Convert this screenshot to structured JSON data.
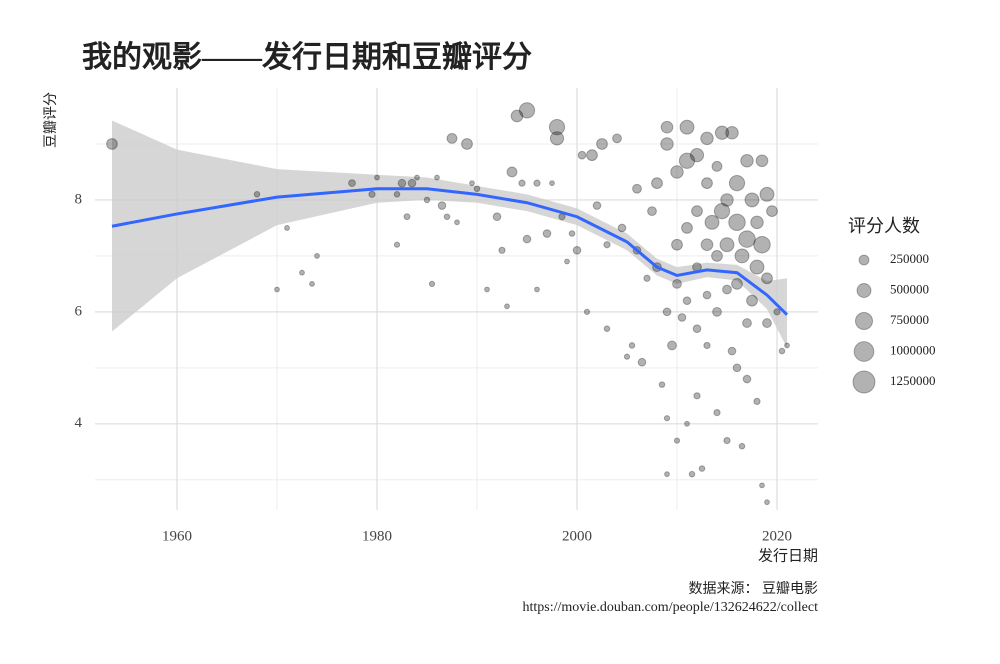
{
  "chart_data": {
    "type": "scatter",
    "title": "我的观影——发行日期和豆瓣评分",
    "x_label": "发行日期",
    "y_label": "豆瓣评分",
    "caption": [
      "数据来源： 豆瓣电影",
      "https://movie.douban.com/people/132624622/collect"
    ],
    "xlim": [
      1951.8,
      2024.1
    ],
    "ylim": [
      2.46,
      10
    ],
    "xticks": [
      1960,
      1980,
      2000,
      2020
    ],
    "yticks": [
      4,
      6,
      8
    ],
    "x_minor_grid": [
      1970,
      1990,
      2010
    ],
    "y_minor_grid": [
      3,
      5,
      7,
      9
    ],
    "grid": true,
    "series": [
      {
        "color": "#000000",
        "opacity": 0.3,
        "x": [
          1953.5,
          1968,
          1970,
          1971,
          1972.5,
          1973.5,
          1974,
          1977.5,
          1979.5,
          1980,
          1982,
          1982,
          1982.5,
          1983,
          1983.5,
          1984,
          1985,
          1985.5,
          1986,
          1986.5,
          1987,
          1987.5,
          1988,
          1989,
          1989.5,
          1990,
          1991,
          1992,
          1992.5,
          1993,
          1993.5,
          1994,
          1994.5,
          1995,
          1995,
          1996,
          1996,
          1997,
          1997.5,
          1998,
          1998,
          1998.5,
          1999,
          1999.5,
          2000,
          2000.5,
          2001,
          2001.5,
          2002,
          2002.5,
          2003,
          2003,
          2004,
          2004.5,
          2005,
          2005.5,
          2006,
          2006,
          2006.5,
          2007,
          2007.5,
          2008,
          2008,
          2008.5,
          2009,
          2009,
          2009,
          2009,
          2009,
          2009.5,
          2010,
          2010,
          2010,
          2010,
          2010.5,
          2011,
          2011,
          2011,
          2011,
          2011,
          2011.5,
          2012,
          2012,
          2012,
          2012,
          2012,
          2012.5,
          2013,
          2013,
          2013,
          2013,
          2013,
          2013.5,
          2014,
          2014,
          2014,
          2014,
          2014.5,
          2014.5,
          2015,
          2015,
          2015,
          2015,
          2015.5,
          2015.5,
          2016,
          2016,
          2016,
          2016,
          2016.5,
          2016.5,
          2017,
          2017,
          2017,
          2017,
          2017.5,
          2017.5,
          2018,
          2018,
          2018,
          2018.5,
          2018.5,
          2018.5,
          2019,
          2019,
          2019,
          2019,
          2019.5,
          2020,
          2020.5,
          2021
        ],
        "values": [
          9.0,
          8.1,
          6.4,
          7.5,
          6.7,
          6.5,
          7.0,
          8.3,
          8.1,
          8.4,
          8.1,
          7.2,
          8.3,
          7.7,
          8.3,
          8.4,
          8.0,
          6.5,
          8.4,
          7.9,
          7.7,
          9.1,
          7.6,
          9.0,
          8.3,
          8.2,
          6.4,
          7.7,
          7.1,
          6.1,
          8.5,
          9.5,
          8.3,
          9.6,
          7.3,
          8.3,
          6.4,
          7.4,
          8.3,
          9.3,
          9.1,
          7.7,
          6.9,
          7.4,
          7.1,
          8.8,
          6.0,
          8.8,
          7.9,
          9.0,
          7.2,
          5.7,
          9.1,
          7.5,
          5.2,
          5.4,
          8.2,
          7.1,
          5.1,
          6.6,
          7.8,
          8.3,
          6.8,
          4.7,
          9.3,
          9.0,
          6.0,
          4.1,
          3.1,
          5.4,
          8.5,
          7.2,
          6.5,
          3.7,
          5.9,
          9.3,
          8.7,
          7.5,
          6.2,
          4.0,
          3.1,
          8.8,
          7.8,
          6.8,
          5.7,
          4.5,
          3.2,
          9.1,
          8.3,
          7.2,
          6.3,
          5.4,
          7.6,
          8.6,
          7.0,
          6.0,
          4.2,
          9.2,
          7.8,
          8.0,
          7.2,
          6.4,
          3.7,
          9.2,
          5.3,
          8.3,
          7.6,
          6.5,
          5.0,
          7.0,
          3.6,
          8.7,
          7.3,
          5.8,
          4.8,
          8.0,
          6.2,
          7.6,
          6.8,
          4.4,
          8.7,
          7.2,
          2.9,
          8.1,
          6.6,
          5.8,
          2.6,
          7.8,
          6.0,
          5.3,
          5.4
        ],
        "sizes": [
          300000,
          80000,
          60000,
          60000,
          60000,
          60000,
          60000,
          120000,
          100000,
          60000,
          80000,
          70000,
          150000,
          90000,
          150000,
          60000,
          80000,
          70000,
          60000,
          150000,
          80000,
          250000,
          60000,
          300000,
          60000,
          80000,
          60000,
          150000,
          100000,
          60000,
          250000,
          350000,
          100000,
          600000,
          150000,
          100000,
          60000,
          150000,
          60000,
          600000,
          450000,
          100000,
          60000,
          80000,
          150000,
          150000,
          70000,
          300000,
          150000,
          300000,
          100000,
          80000,
          200000,
          150000,
          70000,
          80000,
          200000,
          150000,
          150000,
          100000,
          200000,
          300000,
          200000,
          80000,
          350000,
          400000,
          150000,
          70000,
          60000,
          200000,
          400000,
          300000,
          200000,
          70000,
          150000,
          500000,
          600000,
          300000,
          150000,
          60000,
          80000,
          450000,
          300000,
          200000,
          150000,
          100000,
          80000,
          400000,
          300000,
          350000,
          150000,
          100000,
          500000,
          250000,
          300000,
          200000,
          100000,
          450000,
          600000,
          400000,
          500000,
          200000,
          100000,
          400000,
          150000,
          600000,
          700000,
          300000,
          150000,
          500000,
          80000,
          400000,
          700000,
          200000,
          150000,
          500000,
          300000,
          400000,
          500000,
          100000,
          350000,
          700000,
          60000,
          500000,
          300000,
          200000,
          60000,
          300000,
          100000,
          80000,
          60000
        ]
      }
    ],
    "smooth": {
      "color": "#3366ff",
      "band_color": "#cccccc",
      "x": [
        1953.5,
        1960,
        1970,
        1980,
        1985,
        1990,
        1995,
        2000,
        2005,
        2008,
        2010,
        2013,
        2016,
        2019,
        2021
      ],
      "y": [
        7.53,
        7.75,
        8.05,
        8.2,
        8.2,
        8.1,
        7.95,
        7.7,
        7.25,
        6.8,
        6.65,
        6.75,
        6.7,
        6.3,
        5.95
      ],
      "lower": [
        5.65,
        6.6,
        7.55,
        7.95,
        8.0,
        7.95,
        7.8,
        7.55,
        7.1,
        6.65,
        6.5,
        6.62,
        6.56,
        6.05,
        5.36
      ],
      "upper": [
        9.42,
        8.9,
        8.55,
        8.45,
        8.4,
        8.25,
        8.1,
        7.85,
        7.4,
        6.95,
        6.8,
        6.88,
        6.84,
        6.55,
        6.6
      ]
    },
    "size_legend": {
      "title": "评分人数",
      "values": [
        250000,
        500000,
        750000,
        1000000,
        1250000
      ]
    }
  }
}
